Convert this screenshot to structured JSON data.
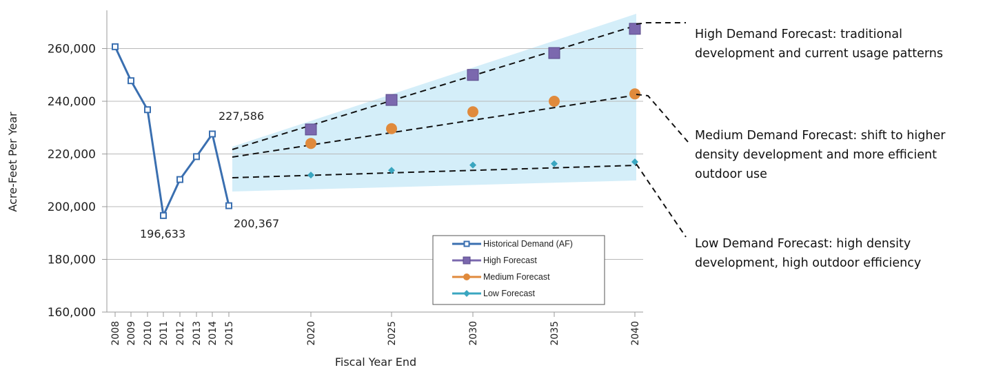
{
  "chart_data": {
    "type": "line",
    "xlabel": "Fiscal Year End",
    "ylabel": "Acre-Feet Per Year",
    "ylim": [
      160000,
      270000
    ],
    "y_ticks": [
      160000,
      180000,
      200000,
      220000,
      240000,
      260000
    ],
    "y_tick_labels": [
      "160,000",
      "180,000",
      "200,000",
      "220,000",
      "240,000",
      "260,000"
    ],
    "x_tick_labels": [
      "2008",
      "2009",
      "2010",
      "2011",
      "2012",
      "2013",
      "2014",
      "2015",
      "2020",
      "2025",
      "2030",
      "2035",
      "2040"
    ],
    "grid": "horizontal",
    "legend_position": "bottom-right",
    "colors": {
      "historical": "#3a6fb0",
      "high": "#7b68ae",
      "medium": "#e08a3c",
      "low": "#3aa6c0",
      "band": "#d4eef9",
      "grid": "#b8b8b8"
    },
    "series": [
      {
        "name": "Historical Demand (AF)",
        "marker": "open-square",
        "x": [
          2008,
          2009,
          2010,
          2011,
          2012,
          2013,
          2014,
          2015
        ],
        "values": [
          260700,
          247800,
          236800,
          196633,
          210300,
          219000,
          227586,
          200367
        ]
      },
      {
        "name": "High Forecast",
        "marker": "square",
        "x": [
          2020,
          2025,
          2030,
          2035,
          2040
        ],
        "values": [
          229300,
          240500,
          250000,
          258300,
          267500
        ]
      },
      {
        "name": "Medium Forecast",
        "marker": "circle",
        "x": [
          2020,
          2025,
          2030,
          2035,
          2040
        ],
        "values": [
          224000,
          229600,
          236000,
          240000,
          242800
        ]
      },
      {
        "name": "Low Forecast",
        "marker": "diamond",
        "x": [
          2020,
          2025,
          2030,
          2035,
          2040
        ],
        "values": [
          212000,
          213800,
          215800,
          216300,
          217000
        ]
      }
    ],
    "data_labels": [
      {
        "x": 2014,
        "text": "227,586"
      },
      {
        "x": 2011,
        "text": "196,633"
      },
      {
        "x": 2015,
        "text": "200,367"
      }
    ],
    "annotations": [
      {
        "id": "high",
        "text": "High Demand Forecast: traditional development and current usage patterns"
      },
      {
        "id": "medium",
        "text": "Medium Demand Forecast: shift to higher density development and more efficient outdoor use"
      },
      {
        "id": "low",
        "text": "Low Demand Forecast: high density development, high outdoor efficiency"
      }
    ]
  }
}
